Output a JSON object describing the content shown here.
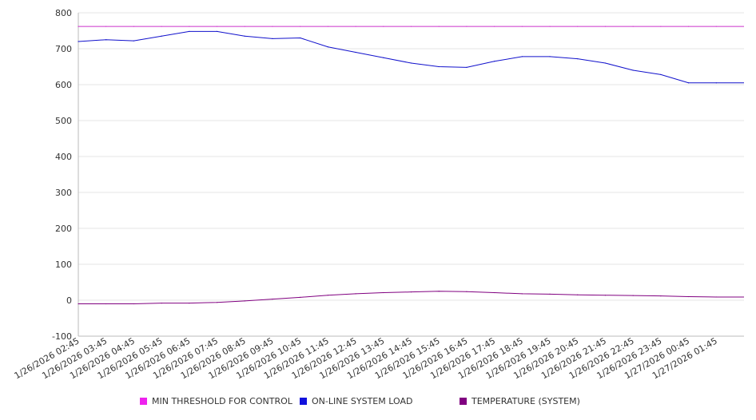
{
  "chart_data": {
    "type": "line",
    "title": "",
    "xlabel": "",
    "ylabel": "",
    "ylim": [
      -100,
      800
    ],
    "yticks": [
      800,
      700,
      600,
      500,
      400,
      300,
      200,
      100,
      0,
      -100
    ],
    "grid": true,
    "legend_placement": "bottom",
    "x_labels": [
      "1/26/2026 02:45",
      "1/26/2026 03:45",
      "1/26/2026 04:45",
      "1/26/2026 05:45",
      "1/26/2026 06:45",
      "1/26/2026 07:45",
      "1/26/2026 08:45",
      "1/26/2026 09:45",
      "1/26/2026 10:45",
      "1/26/2026 11:45",
      "1/26/2026 12:45",
      "1/26/2026 13:45",
      "1/26/2026 14:45",
      "1/26/2026 15:45",
      "1/26/2026 16:45",
      "1/26/2026 17:45",
      "1/26/2026 18:45",
      "1/26/2026 19:45",
      "1/26/2026 20:45",
      "1/26/2026 21:45",
      "1/26/2026 22:45",
      "1/26/2026 23:45",
      "1/27/2026 00:45",
      "1/27/2026 01:45"
    ],
    "series": [
      {
        "name": "MIN THRESHOLD FOR CONTROL",
        "color": "#cc33cc",
        "values": [
          762,
          762,
          762,
          762,
          762,
          762,
          762,
          762,
          762,
          762,
          762,
          762,
          762,
          762,
          762,
          762,
          762,
          762,
          762,
          762,
          762,
          762,
          762,
          762
        ]
      },
      {
        "name": "ON-LINE SYSTEM LOAD",
        "color": "#1111cc",
        "values": [
          720,
          725,
          722,
          735,
          748,
          748,
          735,
          728,
          730,
          705,
          690,
          675,
          660,
          650,
          648,
          665,
          678,
          678,
          672,
          660,
          640,
          628,
          605,
          605
        ]
      },
      {
        "name": "TEMPERATURE (SYSTEM)",
        "color": "#800080",
        "values": [
          -10,
          -10,
          -10,
          -8,
          -8,
          -6,
          -2,
          3,
          8,
          14,
          18,
          21,
          23,
          25,
          24,
          21,
          18,
          17,
          15,
          14,
          13,
          12,
          10,
          9
        ]
      }
    ],
    "colors": {
      "grid": "#e6e6e6",
      "axis": "#bbbbbb",
      "text": "#333333"
    }
  }
}
